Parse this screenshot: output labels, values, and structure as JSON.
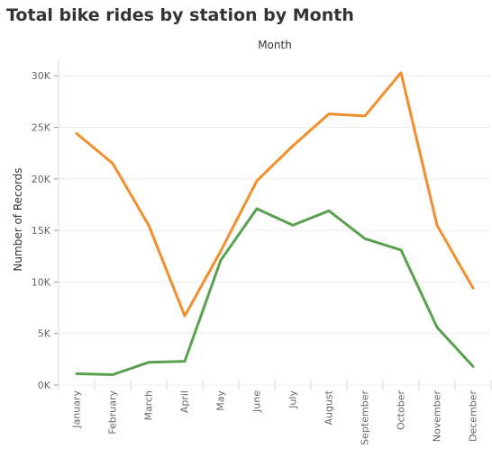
{
  "title": "Total bike rides by station by Month",
  "chart_data": {
    "type": "line",
    "title": "Total bike rides by station by Month",
    "header": "Month",
    "xlabel": "",
    "ylabel": "Number of Records",
    "ylim": [
      0,
      31500
    ],
    "yticks": [
      0,
      5000,
      10000,
      15000,
      20000,
      25000,
      30000
    ],
    "ytick_labels": [
      "0K",
      "5K",
      "10K",
      "15K",
      "20K",
      "25K",
      "30K"
    ],
    "grid": true,
    "categories": [
      "January",
      "February",
      "March",
      "April",
      "May",
      "June",
      "July",
      "August",
      "September",
      "October",
      "November",
      "December"
    ],
    "series": [
      {
        "color": "#f28e2b",
        "values": [
          24400,
          21500,
          15500,
          6700,
          13000,
          19800,
          23200,
          26300,
          26100,
          30300,
          15500,
          9400
        ]
      },
      {
        "color": "#59a14f",
        "values": [
          1100,
          1000,
          2200,
          2300,
          12100,
          17100,
          15500,
          16900,
          14200,
          13100,
          5600,
          1800
        ]
      }
    ]
  }
}
